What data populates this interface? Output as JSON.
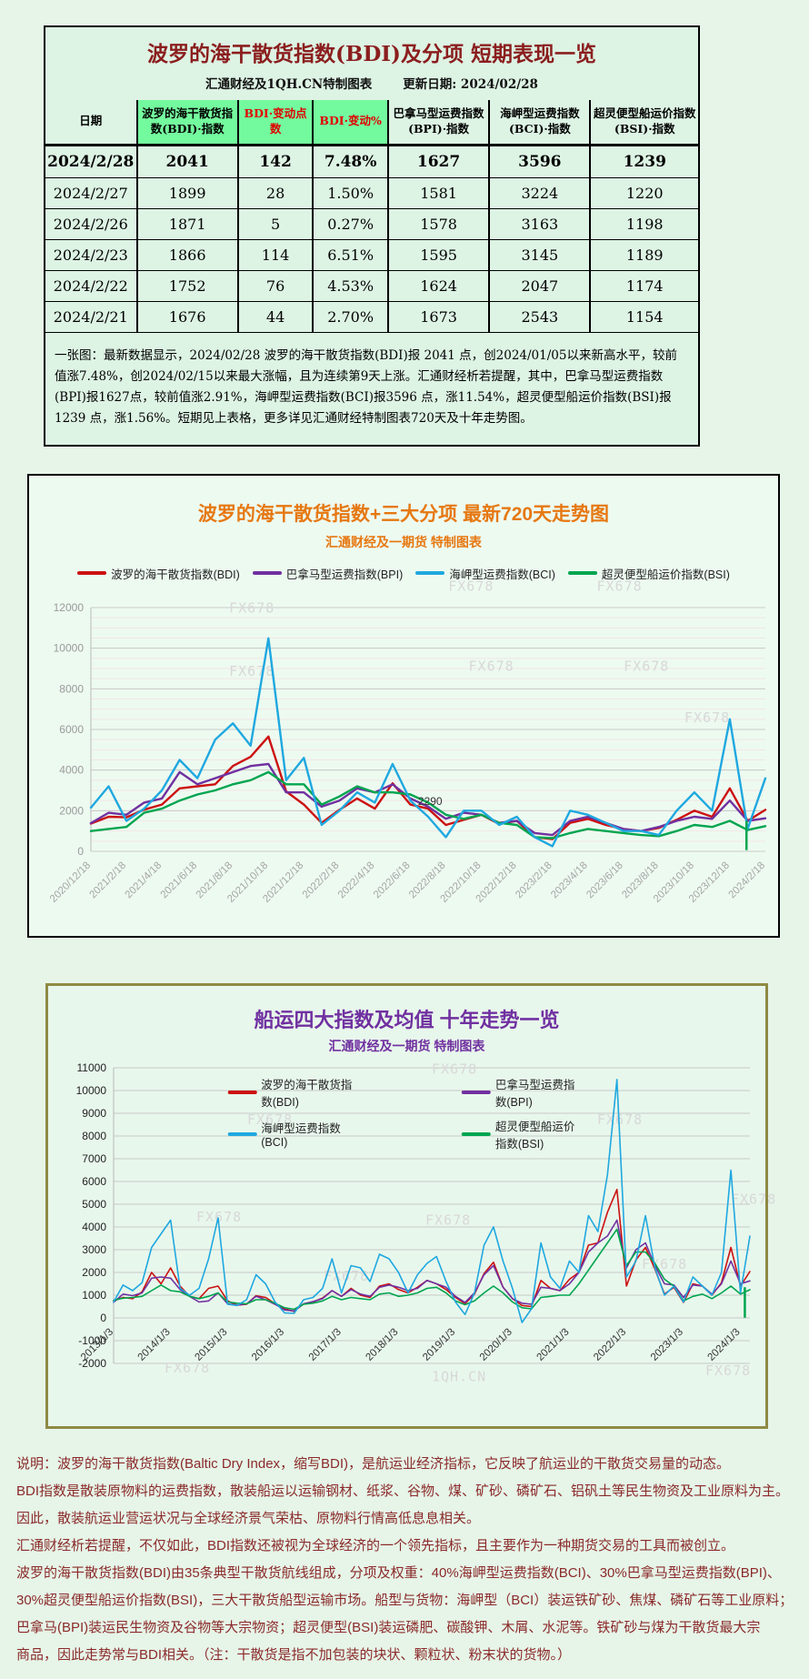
{
  "colors": {
    "maroon_title": "#8b1e1e",
    "orange_title": "#e67812",
    "purple_title": "#7030a0",
    "table_header_green": "#74fa9e",
    "header_red_text": "#e00000",
    "footer_text": "#8b2a2a",
    "olive_border": "#8f8a45",
    "watermark_gray": "#d8d8d8",
    "bdi_red": "#cc1111",
    "bpi_purple": "#7030a0",
    "bci_cyan": "#1fa8e0",
    "bsi_green": "#00a550"
  },
  "table_section": {
    "title": "波罗的海干散货指数(BDI)及分项 短期表现一览",
    "source": "汇通财经及1QH.CN特制图表",
    "update_date": "更新日期: 2024/02/28",
    "headers": [
      "日期",
      "波罗的海干散货指数(BDI)·指数",
      "BDI·变动点数",
      "BDI·变动%",
      "巴拿马型运费指数(BPI)·指数",
      "海岬型运费指数(BCI)·指数",
      "超灵便型船运价指数(BSI)·指数"
    ],
    "rows": [
      [
        "2024/2/28",
        "2041",
        "142",
        "7.48%",
        "1627",
        "3596",
        "1239"
      ],
      [
        "2024/2/27",
        "1899",
        "28",
        "1.50%",
        "1581",
        "3224",
        "1220"
      ],
      [
        "2024/2/26",
        "1871",
        "5",
        "0.27%",
        "1578",
        "3163",
        "1198"
      ],
      [
        "2024/2/23",
        "1866",
        "114",
        "6.51%",
        "1595",
        "3145",
        "1189"
      ],
      [
        "2024/2/22",
        "1752",
        "76",
        "4.53%",
        "1624",
        "2047",
        "1174"
      ],
      [
        "2024/2/21",
        "1676",
        "44",
        "2.70%",
        "1673",
        "2543",
        "1154"
      ]
    ],
    "note": "一张图：最新数据显示，2024/02/28 波罗的海干散货指数(BDI)报 2041 点，创2024/01/05以来新高水平，较前值涨7.48%，创2024/02/15以来最大涨幅，且为连续第9天上涨。汇通财经析若提醒，其中，巴拿马型运费指数(BPI)报1627点，较前值涨2.91%，海岬型运费指数(BCI)报3596 点，涨11.54%，超灵便型船运价指数(BSI)报1239 点，涨1.56%。短期见上表格，更多详见汇通财经特制图表720天及十年走势图。"
  },
  "chart_data": [
    {
      "type": "line",
      "title": "波罗的海干散货指数+三大分项 最新720天走势图",
      "subtitle": "汇通财经及一期货 特制图表",
      "xlabel": "",
      "ylabel": "",
      "ylim": [
        0,
        12000
      ],
      "y_tick_step": 2000,
      "grid": true,
      "legend_position": "top",
      "x_tick_labels": [
        "2020/12/18",
        "2021/2/18",
        "2021/4/18",
        "2021/6/18",
        "2021/8/18",
        "2021/10/18",
        "2021/12/18",
        "2022/2/18",
        "2022/4/18",
        "2022/6/18",
        "2022/8/18",
        "2022/10/18",
        "2022/12/18",
        "2023/2/18",
        "2023/4/18",
        "2023/6/18",
        "2023/8/18",
        "2023/10/18",
        "2023/12/18",
        "2024/2/18"
      ],
      "series": [
        {
          "name": "波罗的海干散货指数(BDI)",
          "color": "#cc1111",
          "values": [
            1366,
            1700,
            1675,
            2050,
            2300,
            3100,
            3200,
            3300,
            4200,
            4650,
            5650,
            2950,
            2300,
            1400,
            2040,
            2600,
            2100,
            3350,
            2300,
            2100,
            1300,
            1550,
            1800,
            1350,
            1500,
            700,
            600,
            1400,
            1600,
            1300,
            1100,
            1000,
            1150,
            1550,
            2000,
            1700,
            3100,
            1500,
            2041
          ]
        },
        {
          "name": "巴拿马型运费指数(BPI)",
          "color": "#7030a0",
          "values": [
            1390,
            1900,
            1800,
            2400,
            2600,
            3900,
            3300,
            3600,
            3900,
            4200,
            4300,
            2900,
            2900,
            2200,
            2500,
            3100,
            2900,
            3300,
            2600,
            2200,
            1600,
            1900,
            1800,
            1400,
            1500,
            900,
            800,
            1500,
            1700,
            1400,
            1100,
            1000,
            1200,
            1500,
            1700,
            1600,
            2500,
            1500,
            1627
          ]
        },
        {
          "name": "海岬型运费指数(BCI)",
          "color": "#1fa8e0",
          "values": [
            2150,
            3200,
            1500,
            2100,
            3000,
            4500,
            3600,
            5500,
            6300,
            5200,
            10485,
            3500,
            4600,
            1300,
            2000,
            2900,
            2400,
            4300,
            2500,
            1700,
            700,
            2000,
            2000,
            1300,
            1700,
            700,
            250,
            2000,
            1800,
            1400,
            1000,
            1000,
            800,
            2000,
            2900,
            2000,
            6500,
            1100,
            3596
          ]
        },
        {
          "name": "超灵便型船运价指数(BSI)",
          "color": "#00a550",
          "values": [
            1000,
            1100,
            1200,
            1900,
            2100,
            2500,
            2800,
            3000,
            3300,
            3500,
            3900,
            3300,
            3300,
            2300,
            2700,
            3200,
            2900,
            2900,
            2800,
            2400,
            1800,
            1600,
            1800,
            1400,
            1300,
            700,
            650,
            900,
            1100,
            1000,
            900,
            800,
            750,
            1000,
            1300,
            1200,
            1500,
            1050,
            1239
          ]
        }
      ],
      "annotations": [
        {
          "text": "2290",
          "x": 0.485,
          "y": 2290
        }
      ],
      "glitch": {
        "x": 0.972,
        "y_top": 1500,
        "y_bottom": 60,
        "color": "#00a550"
      },
      "watermarks": [
        {
          "text": "FX678",
          "x": 0.205,
          "y": 0.02
        },
        {
          "text": "FX678",
          "x": 0.53,
          "y": -0.07
        },
        {
          "text": "FX678",
          "x": 0.75,
          "y": -0.07
        },
        {
          "text": "FX678",
          "x": 0.205,
          "y": 0.28
        },
        {
          "text": "FX678",
          "x": 0.56,
          "y": 0.26
        },
        {
          "text": "FX678",
          "x": 0.79,
          "y": 0.26
        },
        {
          "text": "FX678",
          "x": 0.88,
          "y": 0.47
        }
      ]
    },
    {
      "type": "line",
      "title": "船运四大指数及均值 十年走势一览",
      "subtitle": "汇通财经及一期货 特制图表",
      "xlabel": "",
      "ylabel": "",
      "ylim": [
        -2000,
        11000
      ],
      "y_tick_step": 1000,
      "grid": true,
      "legend_position": "top",
      "x_tick_labels": [
        "2013/1/3",
        "2014/1/3",
        "2015/1/3",
        "2016/1/3",
        "2017/1/3",
        "2018/1/3",
        "2019/1/3",
        "2020/1/3",
        "2021/1/3",
        "2022/1/3",
        "2023/1/3",
        "2024/1/3"
      ],
      "series": [
        {
          "name": "波罗的海干散货指数(BDI)",
          "color": "#cc1111",
          "values": [
            750,
            900,
            850,
            1150,
            2000,
            1500,
            2200,
            1400,
            950,
            850,
            1300,
            1400,
            750,
            560,
            600,
            975,
            900,
            630,
            400,
            290,
            620,
            700,
            875,
            1200,
            950,
            1300,
            1000,
            900,
            1400,
            1500,
            1250,
            1100,
            1350,
            1650,
            1500,
            1250,
            900,
            630,
            1050,
            1950,
            2450,
            1350,
            850,
            550,
            500,
            1650,
            1300,
            1200,
            1700,
            2000,
            3200,
            3300,
            4650,
            5650,
            1400,
            2550,
            3100,
            2150,
            1050,
            1350,
            680,
            1500,
            1400,
            1000,
            1550,
            3100,
            1400,
            2041
          ]
        },
        {
          "name": "巴拿马型运费指数(BPI)",
          "color": "#7030a0",
          "values": [
            690,
            1050,
            980,
            1100,
            1750,
            1800,
            1750,
            1250,
            950,
            700,
            750,
            1100,
            620,
            560,
            620,
            950,
            800,
            600,
            350,
            310,
            620,
            720,
            850,
            1200,
            950,
            1250,
            1050,
            950,
            1350,
            1450,
            1350,
            1200,
            1300,
            1650,
            1500,
            1350,
            950,
            680,
            1100,
            1900,
            2300,
            1350,
            850,
            650,
            600,
            1350,
            1300,
            1200,
            1500,
            2000,
            2900,
            3300,
            3600,
            4300,
            2200,
            3000,
            3300,
            2300,
            1500,
            1450,
            900,
            1450,
            1400,
            1050,
            1500,
            2500,
            1500,
            1627
          ]
        },
        {
          "name": "海岬型运费指数(BCI)",
          "color": "#1fa8e0",
          "values": [
            700,
            1450,
            1200,
            1550,
            3100,
            3700,
            4300,
            1300,
            1000,
            1300,
            2600,
            4400,
            600,
            550,
            800,
            1900,
            1500,
            700,
            220,
            200,
            800,
            900,
            1300,
            2600,
            1100,
            2300,
            2200,
            1600,
            2800,
            2600,
            2000,
            1100,
            1900,
            2400,
            2700,
            1600,
            700,
            150,
            1100,
            3200,
            4000,
            2500,
            1300,
            -200,
            400,
            3300,
            1800,
            1300,
            2500,
            2000,
            4500,
            3800,
            6300,
            10485,
            1800,
            2500,
            4500,
            2200,
            1000,
            1400,
            700,
            1800,
            1400,
            1000,
            2000,
            6500,
            1100,
            3596
          ]
        },
        {
          "name": "超灵便型船运价指数(BSI)",
          "color": "#00a550",
          "values": [
            780,
            870,
            900,
            950,
            1200,
            1450,
            1200,
            1150,
            950,
            850,
            950,
            1100,
            700,
            650,
            620,
            800,
            800,
            650,
            450,
            380,
            600,
            650,
            750,
            950,
            800,
            900,
            850,
            800,
            1050,
            1100,
            950,
            1000,
            1100,
            1300,
            1350,
            1100,
            750,
            580,
            750,
            1100,
            1400,
            1100,
            700,
            450,
            400,
            900,
            950,
            1000,
            1000,
            1500,
            2100,
            2700,
            3300,
            3900,
            2300,
            2900,
            2900,
            2400,
            1700,
            1400,
            750,
            950,
            1050,
            850,
            1100,
            1400,
            1050,
            1239
          ]
        }
      ],
      "annotations": [],
      "glitch": {
        "x": 0.992,
        "y_top": 1350,
        "y_bottom": 10,
        "color": "#00a550"
      },
      "watermarks": [
        {
          "text": "FX678",
          "x": 0.5,
          "y": 0.02
        },
        {
          "text": "FX678",
          "x": 0.21,
          "y": 0.19
        },
        {
          "text": "FX678",
          "x": 0.76,
          "y": 0.19
        },
        {
          "text": "FX678",
          "x": 0.13,
          "y": 0.52
        },
        {
          "text": "FX678",
          "x": 0.49,
          "y": 0.53
        },
        {
          "text": "FX678",
          "x": 0.33,
          "y": 0.72
        },
        {
          "text": "FX678",
          "x": 0.97,
          "y": 0.46
        },
        {
          "text": "FX678",
          "x": 0.83,
          "y": 0.68
        },
        {
          "text": "FX678",
          "x": 0.08,
          "y": 1.03
        },
        {
          "text": "1QH.CN",
          "x": 0.5,
          "y": 1.06
        },
        {
          "text": "FX678",
          "x": 0.93,
          "y": 1.04
        }
      ]
    }
  ],
  "footer": {
    "lines": [
      "说明：波罗的海干散货指数(Baltic Dry Index，缩写BDI)，是航运业经济指标，它反映了航运业的干散货交易量的动态。",
      "BDI指数是散装原物料的运费指数，散装船运以运输钢材、纸浆、谷物、煤、矿砂、磷矿石、铝矾土等民生物资及工业原料为主。",
      "因此，散装航运业营运状况与全球经济景气荣枯、原物料行情高低息息相关。",
      "汇通财经析若提醒，不仅如此，BDI指数还被视为全球经济的一个领先指标，且主要作为一种期货交易的工具而被创立。",
      "波罗的海干散货指数(BDI)由35条典型干散货航线组成，分项及权重：40%海岬型运费指数(BCI)、30%巴拿马型运费指数(BPI)、",
      "30%超灵便型船运价指数(BSI)，三大干散货船型运输市场。船型与货物：海岬型（BCI）装运铁矿砂、焦煤、磷矿石等工业原料；",
      "巴拿马(BPI)装运民生物资及谷物等大宗物资；超灵便型(BSI)装运磷肥、碳酸钾、木屑、水泥等。铁矿砂与煤为干散货最大宗",
      "商品，因此走势常与BDI相关。（注：干散货是指不加包装的块状、颗粒状、粉末状的货物。）"
    ]
  }
}
